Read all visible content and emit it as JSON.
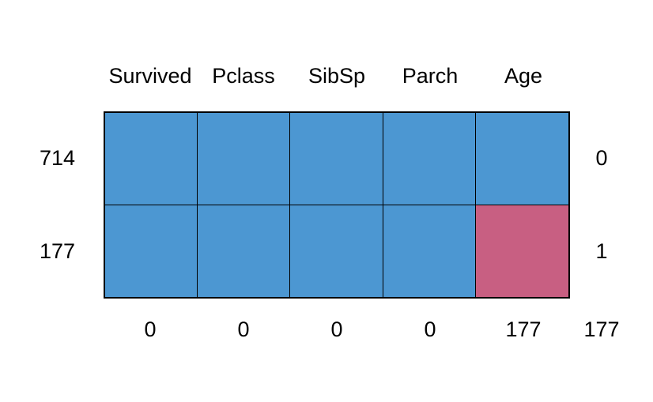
{
  "chart_data": {
    "type": "heatmap",
    "subtype": "missing-data-pattern",
    "title": "",
    "columns": [
      "Survived",
      "Pclass",
      "SibSp",
      "Parch",
      "Age"
    ],
    "rows": [
      {
        "left_label": "714",
        "right_label": "0",
        "cells": [
          1,
          1,
          1,
          1,
          1
        ]
      },
      {
        "left_label": "177",
        "right_label": "1",
        "cells": [
          1,
          1,
          1,
          1,
          0
        ]
      }
    ],
    "bottom_labels": [
      "0",
      "0",
      "0",
      "0",
      "177"
    ],
    "bottom_total": "177",
    "legend": {
      "observed_value": 1,
      "missing_value": 0
    },
    "layout": {
      "grid_rows": 2,
      "grid_cols": 5
    },
    "colors": {
      "observed": "#4C97D2",
      "missing": "#C85F82",
      "cell_border": "#000000",
      "text": "#000000",
      "background": "#FFFFFF"
    }
  }
}
